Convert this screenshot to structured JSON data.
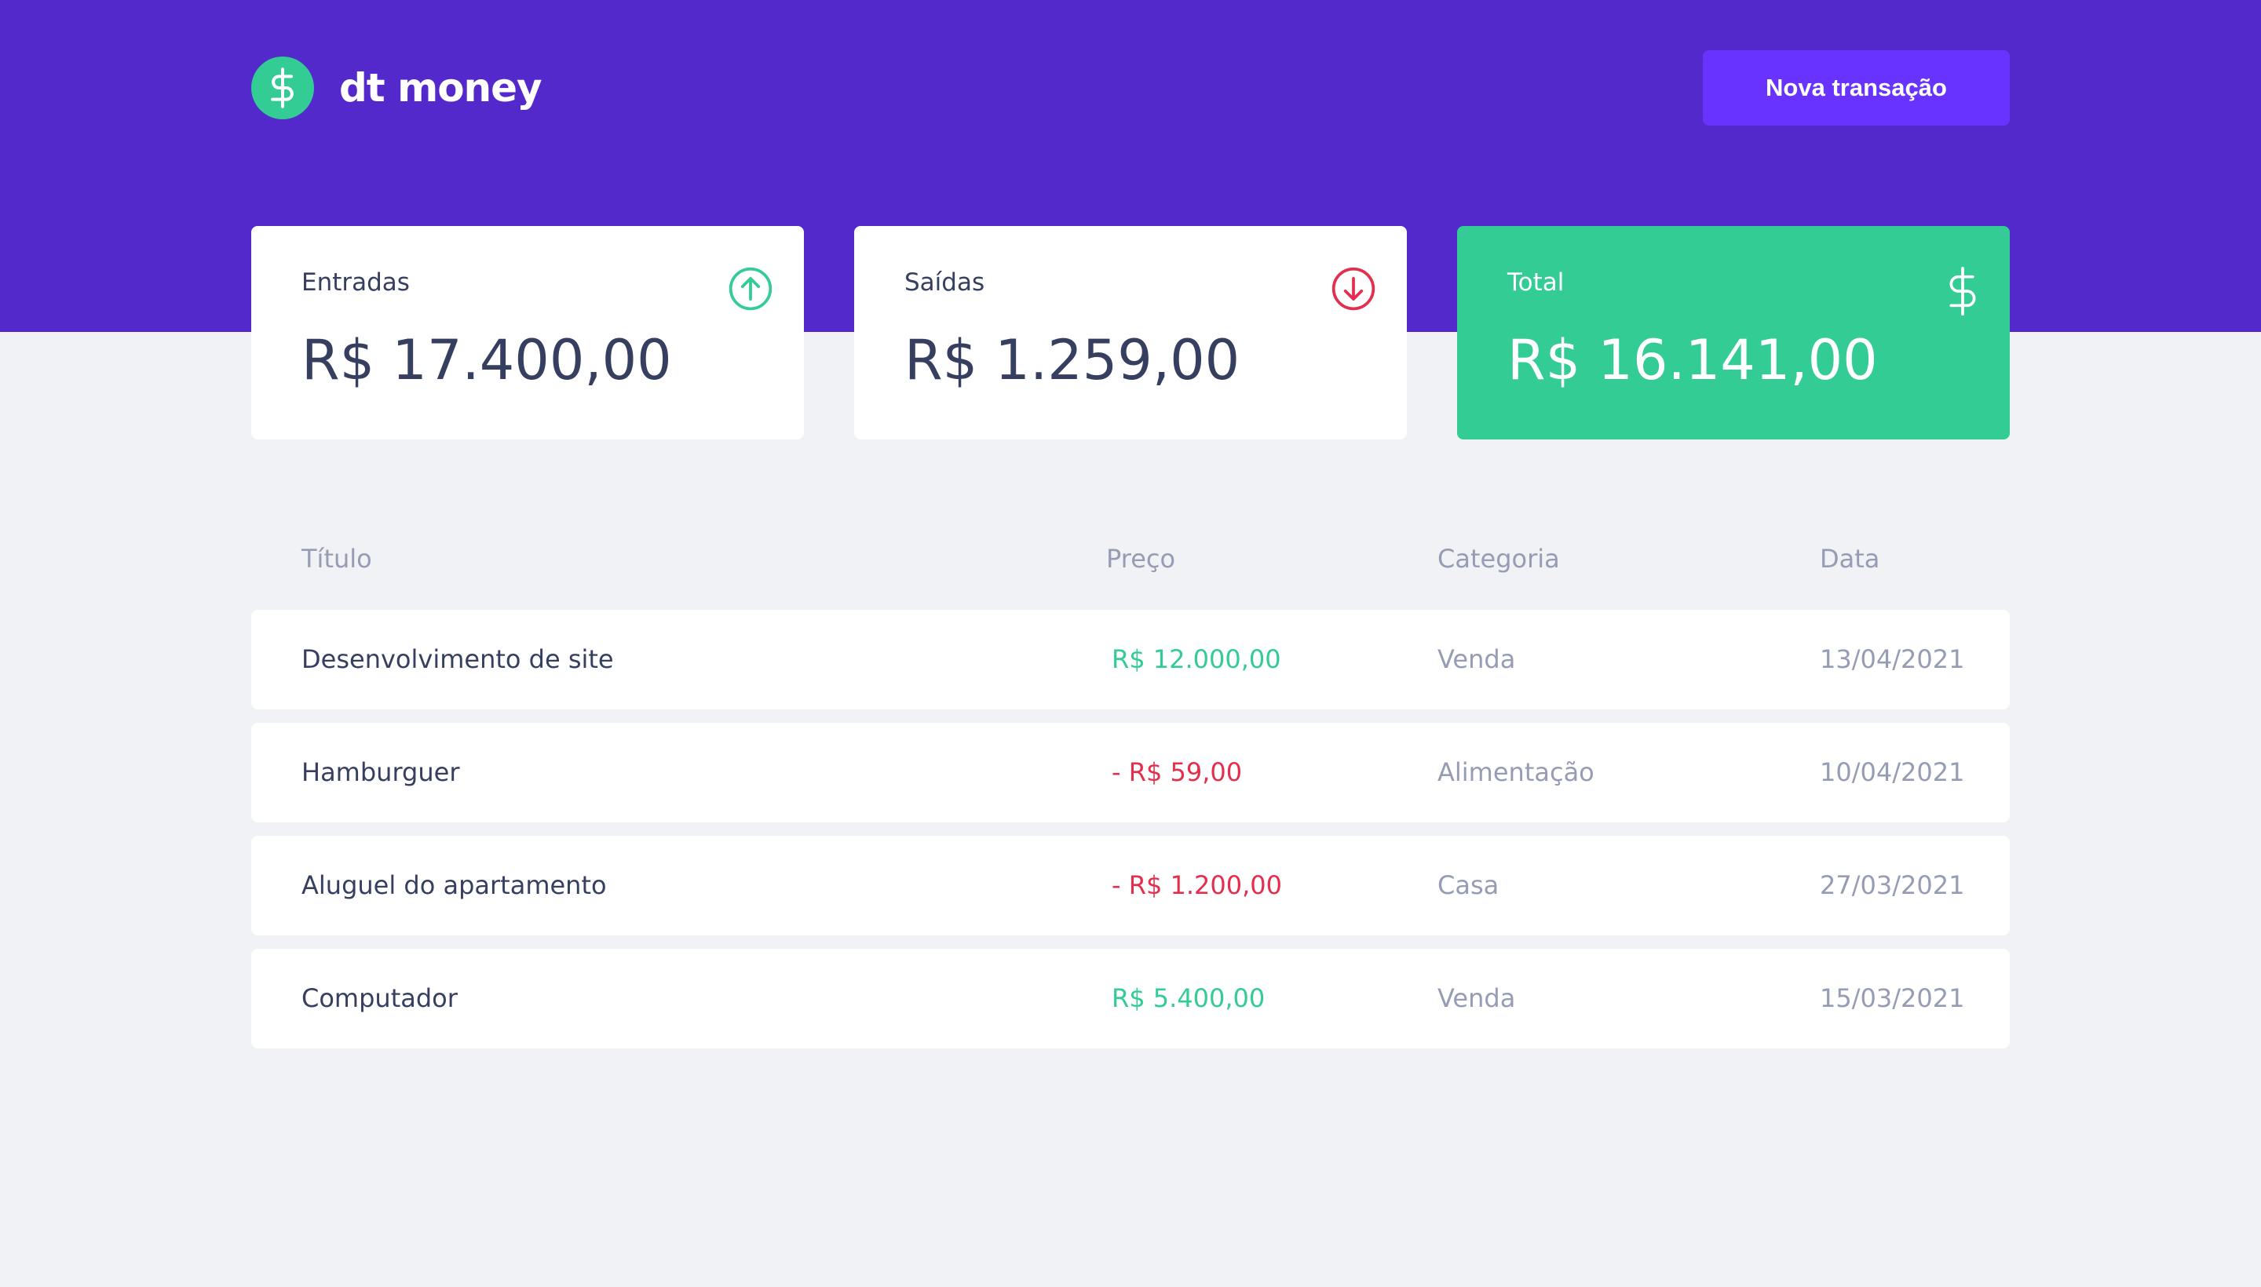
{
  "app": {
    "name": "dt money",
    "new_transaction_label": "Nova transação"
  },
  "summary": {
    "income": {
      "label": "Entradas",
      "value": "R$ 17.400,00"
    },
    "outcome": {
      "label": "Saídas",
      "value": "R$ 1.259,00"
    },
    "total": {
      "label": "Total",
      "value": "R$ 16.141,00"
    }
  },
  "table": {
    "headers": [
      "Título",
      "Preço",
      "Categoria",
      "Data"
    ],
    "rows": [
      {
        "title": "Desenvolvimento de site",
        "price": "R$ 12.000,00",
        "type": "deposit",
        "category": "Venda",
        "date": "13/04/2021"
      },
      {
        "title": "Hamburguer",
        "price": "- R$ 59,00",
        "type": "withdraw",
        "category": "Alimentação",
        "date": "10/04/2021"
      },
      {
        "title": "Aluguel do apartamento",
        "price": "- R$ 1.200,00",
        "type": "withdraw",
        "category": "Casa",
        "date": "27/03/2021"
      },
      {
        "title": "Computador",
        "price": "R$ 5.400,00",
        "type": "deposit",
        "category": "Venda",
        "date": "15/03/2021"
      }
    ]
  },
  "colors": {
    "primary": "#5429cc",
    "button": "#6933ff",
    "green": "#33cc95",
    "red": "#e52e4d",
    "background": "#f0f2f5"
  }
}
